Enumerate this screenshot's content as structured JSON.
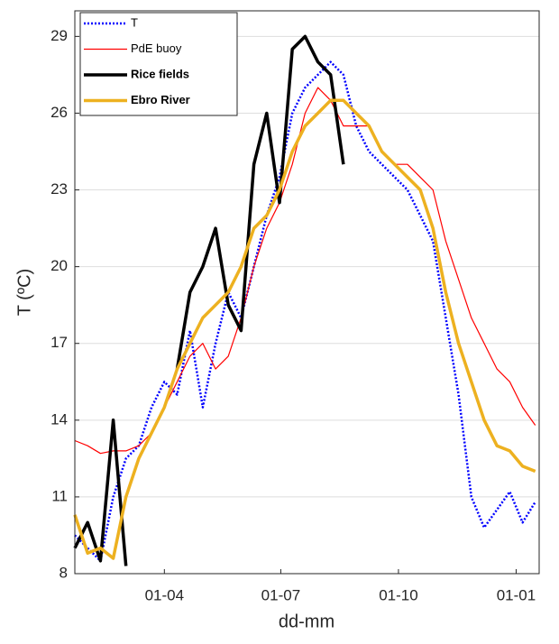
{
  "chart_data": {
    "type": "line",
    "xlabel": "dd-mm",
    "ylabel": "T (ºC)",
    "x": [
      "21-01",
      "31-01",
      "10-02",
      "20-02",
      "02-03",
      "12-03",
      "22-03",
      "01-04",
      "11-04",
      "21-04",
      "01-05",
      "11-05",
      "21-05",
      "31-05",
      "10-06",
      "20-06",
      "30-06",
      "10-07",
      "20-07",
      "30-07",
      "09-08",
      "19-08",
      "29-08",
      "08-09",
      "18-09",
      "28-09",
      "08-10",
      "18-10",
      "28-10",
      "07-11",
      "17-11",
      "27-11",
      "07-12",
      "17-12",
      "27-12",
      "06-01",
      "16-01"
    ],
    "xlim": [
      "21-01",
      "19-01"
    ],
    "xticks": [
      "01-04",
      "01-07",
      "01-10",
      "01-01"
    ],
    "ylim": [
      8,
      30
    ],
    "yticks": [
      8,
      11,
      14,
      17,
      20,
      23,
      26,
      29
    ],
    "grid": true,
    "legend": "upper-left",
    "series": [
      {
        "name": "T",
        "color": "#0000ff",
        "style": "dotted",
        "values": [
          9.5,
          9,
          8.5,
          11,
          12.5,
          13,
          14.5,
          15.5,
          15,
          17.5,
          14.5,
          17,
          19,
          18,
          20,
          22,
          23.5,
          26,
          27,
          27.5,
          28,
          27.5,
          25.5,
          24.5,
          24,
          23.5,
          23,
          22,
          21,
          18,
          15,
          11,
          9.8,
          10.5,
          11.2,
          10,
          10.8
        ]
      },
      {
        "name": "PdE buoy",
        "color": "#ff0000",
        "style": "thin",
        "values": [
          13.2,
          13,
          12.7,
          12.8,
          12.8,
          13,
          13.5,
          14.5,
          15.5,
          16.5,
          17,
          16,
          16.5,
          18,
          20,
          21.5,
          22.5,
          24,
          26,
          27,
          26.5,
          25.5,
          25.5,
          25.5,
          24.5,
          24,
          24,
          23.5,
          23,
          21,
          19.5,
          18,
          17,
          16,
          15.5,
          14.5,
          13.8
        ]
      },
      {
        "name": "Rice fields",
        "color": "#000000",
        "style": "thick",
        "values": [
          9,
          10,
          8.5,
          14,
          8.3,
          null,
          null,
          null,
          16,
          19,
          20,
          21.5,
          18.5,
          17.5,
          24,
          26,
          22.5,
          28.5,
          29,
          28,
          27.5,
          24,
          null,
          null,
          null,
          null,
          null,
          null,
          null,
          null,
          null,
          null,
          null,
          null,
          null,
          null,
          null
        ]
      },
      {
        "name": "Ebro River",
        "color": "#edb120",
        "style": "thick",
        "values": [
          10.3,
          8.8,
          9,
          8.6,
          11,
          12.5,
          13.5,
          14.5,
          16,
          17,
          18,
          18.5,
          19,
          20,
          21.5,
          22,
          23,
          24.5,
          25.5,
          26,
          26.5,
          26.5,
          26,
          25.5,
          24.5,
          24,
          23.5,
          23,
          21.5,
          19,
          17,
          15.5,
          14,
          13,
          12.8,
          12.2,
          12
        ]
      }
    ]
  }
}
